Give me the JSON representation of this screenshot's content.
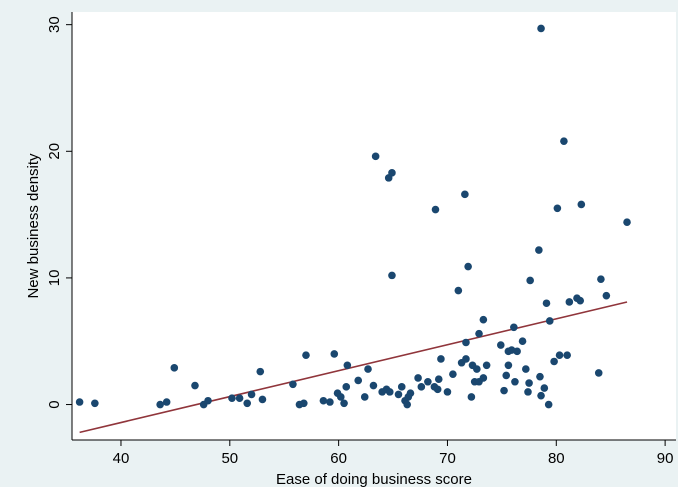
{
  "chart_data": {
    "type": "scatter",
    "xlabel": "Ease of doing business score",
    "ylabel": "New business density",
    "xlim": [
      35.5,
      91
    ],
    "ylim": [
      -2.8,
      31
    ],
    "xticks": [
      "40",
      "50",
      "60",
      "70",
      "80",
      "90"
    ],
    "yticks": [
      "0",
      "10",
      "20",
      "30"
    ],
    "grid": false,
    "legend": "none",
    "colors": {
      "background": "#eaf2f3",
      "plot_area": "#ffffff",
      "points": "#1a476f",
      "fit_line": "#90353b"
    },
    "points": [
      [
        36.2,
        0.2
      ],
      [
        37.6,
        0.1
      ],
      [
        43.6,
        0.0
      ],
      [
        44.2,
        0.2
      ],
      [
        44.9,
        2.9
      ],
      [
        46.8,
        1.5
      ],
      [
        47.6,
        0.0
      ],
      [
        48.0,
        0.3
      ],
      [
        50.2,
        0.5
      ],
      [
        50.9,
        0.5
      ],
      [
        51.6,
        0.1
      ],
      [
        52.0,
        0.8
      ],
      [
        52.8,
        2.6
      ],
      [
        53.0,
        0.4
      ],
      [
        55.8,
        1.6
      ],
      [
        56.4,
        0.0
      ],
      [
        56.8,
        0.1
      ],
      [
        57.0,
        3.9
      ],
      [
        58.6,
        0.3
      ],
      [
        59.2,
        0.2
      ],
      [
        59.6,
        4.0
      ],
      [
        59.9,
        0.9
      ],
      [
        60.2,
        0.6
      ],
      [
        60.5,
        0.1
      ],
      [
        60.8,
        3.1
      ],
      [
        60.7,
        1.4
      ],
      [
        61.8,
        1.9
      ],
      [
        62.4,
        0.6
      ],
      [
        62.7,
        2.8
      ],
      [
        63.2,
        1.5
      ],
      [
        63.4,
        19.6
      ],
      [
        64.0,
        1.0
      ],
      [
        64.4,
        1.2
      ],
      [
        64.7,
        1.0
      ],
      [
        64.6,
        17.9
      ],
      [
        64.9,
        18.3
      ],
      [
        64.9,
        10.2
      ],
      [
        65.5,
        0.8
      ],
      [
        65.8,
        1.4
      ],
      [
        66.1,
        0.3
      ],
      [
        66.3,
        0.0
      ],
      [
        66.4,
        0.6
      ],
      [
        66.6,
        0.9
      ],
      [
        67.3,
        2.1
      ],
      [
        67.6,
        1.4
      ],
      [
        68.2,
        1.8
      ],
      [
        68.8,
        1.4
      ],
      [
        69.1,
        1.2
      ],
      [
        69.2,
        2.0
      ],
      [
        69.4,
        3.6
      ],
      [
        68.9,
        15.4
      ],
      [
        70.0,
        1.0
      ],
      [
        70.5,
        2.4
      ],
      [
        71.0,
        9.0
      ],
      [
        71.3,
        3.3
      ],
      [
        71.6,
        16.6
      ],
      [
        71.7,
        3.6
      ],
      [
        71.9,
        10.9
      ],
      [
        71.7,
        4.9
      ],
      [
        72.2,
        0.6
      ],
      [
        72.3,
        3.1
      ],
      [
        72.5,
        1.8
      ],
      [
        72.7,
        2.8
      ],
      [
        72.9,
        1.8
      ],
      [
        72.9,
        5.6
      ],
      [
        73.3,
        6.7
      ],
      [
        73.3,
        2.1
      ],
      [
        73.6,
        3.1
      ],
      [
        74.9,
        4.7
      ],
      [
        75.2,
        1.1
      ],
      [
        75.4,
        2.3
      ],
      [
        75.6,
        3.1
      ],
      [
        75.6,
        4.2
      ],
      [
        75.9,
        4.3
      ],
      [
        76.1,
        6.1
      ],
      [
        76.2,
        1.8
      ],
      [
        76.4,
        4.2
      ],
      [
        76.9,
        5.0
      ],
      [
        77.2,
        2.8
      ],
      [
        77.4,
        1.0
      ],
      [
        77.5,
        1.7
      ],
      [
        77.6,
        9.8
      ],
      [
        78.4,
        12.2
      ],
      [
        78.5,
        2.2
      ],
      [
        78.6,
        0.7
      ],
      [
        78.6,
        29.7
      ],
      [
        78.9,
        1.3
      ],
      [
        79.1,
        8.0
      ],
      [
        79.3,
        0.0
      ],
      [
        79.4,
        6.6
      ],
      [
        79.8,
        3.4
      ],
      [
        80.1,
        15.5
      ],
      [
        80.3,
        3.9
      ],
      [
        80.7,
        20.8
      ],
      [
        81.0,
        3.9
      ],
      [
        81.2,
        8.1
      ],
      [
        81.9,
        8.4
      ],
      [
        82.2,
        8.2
      ],
      [
        82.3,
        15.8
      ],
      [
        83.9,
        2.5
      ],
      [
        84.1,
        9.9
      ],
      [
        84.6,
        8.6
      ],
      [
        86.5,
        14.4
      ]
    ],
    "fit_line": {
      "x": [
        36.2,
        86.5
      ],
      "y": [
        -2.2,
        8.1
      ]
    }
  }
}
